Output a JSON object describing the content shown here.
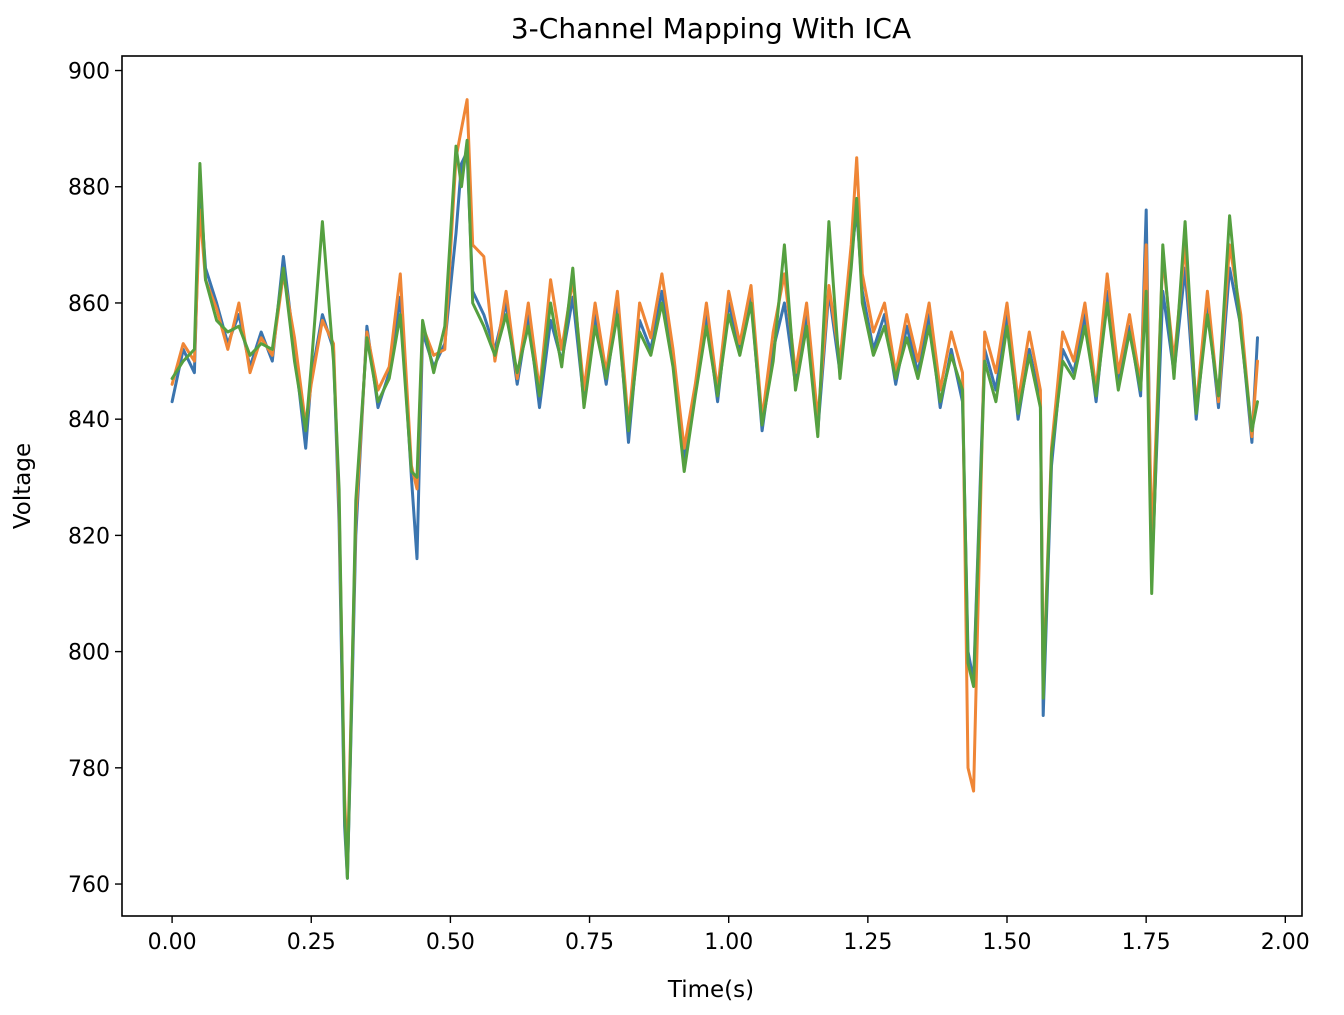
{
  "chart_data": {
    "type": "line",
    "title": "3-Channel Mapping With ICA",
    "xlabel": "Time(s)",
    "ylabel": "Voltage",
    "xlim": [
      -0.09,
      2.03
    ],
    "ylim": [
      754.5,
      902.5
    ],
    "grid": false,
    "legend": "none",
    "xticks": [
      "0.00",
      "0.25",
      "0.50",
      "0.75",
      "1.00",
      "1.25",
      "1.50",
      "1.75",
      "2.00"
    ],
    "yticks": [
      "760",
      "780",
      "800",
      "820",
      "840",
      "860",
      "880",
      "900"
    ],
    "x": [
      0.0,
      0.02,
      0.04,
      0.05,
      0.06,
      0.08,
      0.1,
      0.12,
      0.14,
      0.16,
      0.18,
      0.2,
      0.22,
      0.24,
      0.25,
      0.27,
      0.29,
      0.3,
      0.31,
      0.315,
      0.32,
      0.33,
      0.35,
      0.37,
      0.39,
      0.41,
      0.43,
      0.44,
      0.45,
      0.47,
      0.49,
      0.51,
      0.52,
      0.53,
      0.54,
      0.56,
      0.58,
      0.6,
      0.62,
      0.64,
      0.66,
      0.68,
      0.7,
      0.72,
      0.74,
      0.76,
      0.78,
      0.8,
      0.82,
      0.84,
      0.86,
      0.88,
      0.9,
      0.92,
      0.94,
      0.96,
      0.98,
      1.0,
      1.02,
      1.04,
      1.06,
      1.08,
      1.1,
      1.12,
      1.14,
      1.16,
      1.18,
      1.2,
      1.22,
      1.23,
      1.24,
      1.26,
      1.28,
      1.3,
      1.32,
      1.34,
      1.36,
      1.38,
      1.4,
      1.42,
      1.43,
      1.44,
      1.46,
      1.48,
      1.5,
      1.52,
      1.54,
      1.56,
      1.565,
      1.58,
      1.6,
      1.62,
      1.64,
      1.66,
      1.68,
      1.7,
      1.72,
      1.74,
      1.75,
      1.76,
      1.78,
      1.8,
      1.82,
      1.84,
      1.86,
      1.88,
      1.9,
      1.92,
      1.94,
      1.95
    ],
    "series": [
      {
        "color": "#3b75af",
        "values": [
          843,
          852,
          848,
          880,
          866,
          860,
          853,
          858,
          849,
          855,
          850,
          868,
          852,
          835,
          847,
          858,
          852,
          822,
          770,
          761,
          780,
          820,
          856,
          842,
          848,
          861,
          830,
          816,
          855,
          849,
          853,
          872,
          884,
          886,
          862,
          858,
          852,
          860,
          846,
          858,
          842,
          857,
          850,
          861,
          843,
          858,
          846,
          860,
          836,
          857,
          852,
          862,
          850,
          833,
          845,
          858,
          843,
          860,
          852,
          861,
          838,
          852,
          860,
          846,
          858,
          838,
          862,
          848,
          868,
          876,
          862,
          852,
          858,
          846,
          856,
          848,
          858,
          842,
          852,
          843,
          800,
          795,
          852,
          845,
          858,
          840,
          852,
          843,
          789,
          832,
          852,
          848,
          858,
          843,
          862,
          846,
          856,
          844,
          876,
          813,
          862,
          848,
          866,
          840,
          860,
          842,
          866,
          856,
          836,
          854
        ]
      },
      {
        "color": "#ef8636",
        "values": [
          846,
          853,
          850,
          876,
          864,
          859,
          852,
          860,
          848,
          854,
          851,
          865,
          854,
          839,
          846,
          857,
          853,
          825,
          775,
          763,
          783,
          823,
          855,
          845,
          849,
          865,
          832,
          828,
          856,
          851,
          852,
          885,
          890,
          895,
          870,
          868,
          850,
          862,
          847,
          860,
          845,
          864,
          852,
          864,
          845,
          860,
          848,
          862,
          839,
          860,
          854,
          865,
          852,
          835,
          846,
          860,
          845,
          862,
          853,
          863,
          840,
          855,
          865,
          848,
          860,
          840,
          863,
          850,
          870,
          885,
          865,
          855,
          860,
          848,
          858,
          850,
          860,
          845,
          855,
          848,
          780,
          776,
          855,
          848,
          860,
          843,
          855,
          845,
          794,
          835,
          855,
          850,
          860,
          845,
          865,
          848,
          858,
          846,
          870,
          818,
          868,
          850,
          870,
          842,
          862,
          843,
          870,
          858,
          837,
          850
        ]
      },
      {
        "color": "#55a040",
        "values": [
          847,
          850,
          852,
          884,
          864,
          857,
          855,
          856,
          851,
          853,
          852,
          866,
          850,
          838,
          849,
          874,
          850,
          828,
          772,
          761,
          781,
          826,
          854,
          843,
          847,
          858,
          831,
          830,
          857,
          848,
          856,
          887,
          880,
          888,
          860,
          856,
          851,
          858,
          848,
          856,
          844,
          860,
          849,
          866,
          842,
          856,
          847,
          858,
          838,
          855,
          851,
          860,
          849,
          831,
          844,
          856,
          844,
          858,
          851,
          860,
          839,
          850,
          870,
          845,
          856,
          837,
          874,
          847,
          866,
          878,
          860,
          851,
          856,
          847,
          854,
          847,
          856,
          843,
          851,
          845,
          798,
          794,
          850,
          843,
          856,
          841,
          851,
          842,
          792,
          834,
          850,
          847,
          856,
          844,
          860,
          845,
          855,
          845,
          862,
          810,
          870,
          847,
          874,
          841,
          858,
          844,
          875,
          855,
          838,
          843
        ]
      }
    ]
  }
}
